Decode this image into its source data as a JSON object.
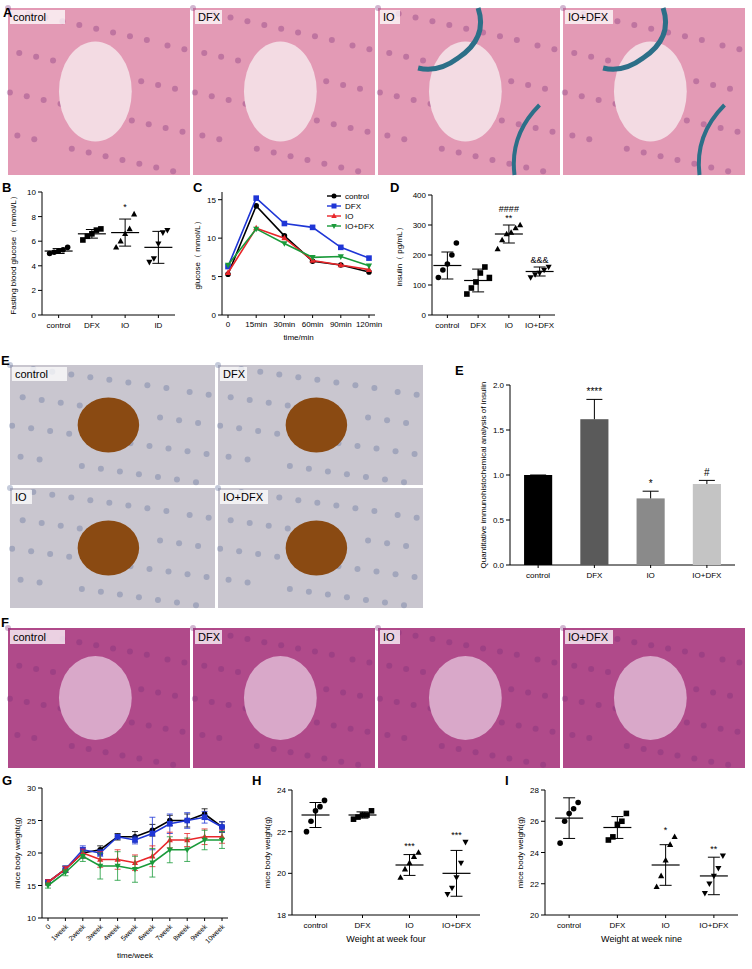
{
  "image_panels": [
    {
      "panel": "A",
      "labels": [
        "control",
        "DFX",
        "IO",
        "IO+DFX"
      ]
    },
    {
      "panel": "E",
      "labels": [
        "control",
        "DFX",
        "IO",
        "IO+DFX"
      ]
    },
    {
      "panel": "F",
      "labels": [
        "control",
        "DFX",
        "IO",
        "IO+DFX"
      ]
    }
  ],
  "chart_data": [
    {
      "panel": "B",
      "type": "dot",
      "y_label": "Fasting blood glucose（ mmol/L）",
      "categories": [
        "control",
        "DFX",
        "IO",
        "ID"
      ],
      "points": [
        [
          5.0,
          5.1,
          5.2,
          5.3,
          5.5
        ],
        [
          6.1,
          6.4,
          6.6,
          6.9,
          7.0
        ],
        [
          5.5,
          6.0,
          6.6,
          7.0,
          8.2
        ],
        [
          4.3,
          4.6,
          5.8,
          6.7,
          6.9
        ]
      ],
      "means": [
        5.2,
        6.6,
        6.7,
        5.5
      ],
      "errors": [
        0.2,
        0.35,
        1.1,
        1.3
      ],
      "annotations": [
        null,
        null,
        [
          "*"
        ],
        null
      ],
      "ylim": [
        0,
        10
      ],
      "yticks": [
        0,
        2,
        4,
        6,
        8,
        10
      ]
    },
    {
      "panel": "C",
      "type": "line",
      "y_label": "glucose（ mmol/L）",
      "x_label": "time/min",
      "categories": [
        "0",
        "15min",
        "30min",
        "60min",
        "90min",
        "120min"
      ],
      "series": [
        {
          "name": "control",
          "color": "#000000",
          "marker": "circle",
          "values": [
            5.3,
            14.2,
            10.3,
            7.0,
            6.5,
            5.6
          ]
        },
        {
          "name": "DFX",
          "color": "#1f36d6",
          "marker": "square",
          "values": [
            6.3,
            15.2,
            11.9,
            11.4,
            8.8,
            7.4
          ]
        },
        {
          "name": "IO",
          "color": "#e8262a",
          "marker": "triangle",
          "values": [
            5.5,
            11.3,
            10.0,
            7.1,
            6.5,
            5.9
          ]
        },
        {
          "name": "IO+DFX",
          "color": "#1a9a3a",
          "marker": "triangle-down",
          "values": [
            6.5,
            11.2,
            9.3,
            7.5,
            7.6,
            6.4
          ]
        }
      ],
      "legend": "top-right",
      "ylim": [
        0,
        16
      ],
      "yticks": [
        0,
        5,
        10,
        15
      ]
    },
    {
      "panel": "D",
      "type": "dot",
      "y_label": "insulin（ pg/mL）",
      "categories": [
        "control",
        "DFX",
        "IO",
        "IO+DFX"
      ],
      "points": [
        [
          125,
          150,
          170,
          200,
          240
        ],
        [
          70,
          90,
          110,
          140,
          160,
          125
        ],
        [
          220,
          250,
          270,
          275,
          290,
          300
        ],
        [
          125,
          135,
          140,
          150,
          160
        ]
      ],
      "means": [
        165,
        115,
        270,
        145
      ],
      "errors": [
        45,
        38,
        30,
        15
      ],
      "annotations": [
        null,
        null,
        [
          "####",
          "**"
        ],
        [
          "&&&"
        ]
      ],
      "ylim": [
        0,
        400
      ],
      "yticks": [
        0,
        100,
        200,
        300,
        400
      ]
    },
    {
      "panel": "E",
      "type": "bar",
      "y_label": "Quantitative immunohistochemical analysis of insulin",
      "categories": [
        "control",
        "DFX",
        "IO",
        "IO+DFX"
      ],
      "values": [
        1.0,
        1.62,
        0.74,
        0.9
      ],
      "errors": [
        0,
        0.22,
        0.08,
        0.04
      ],
      "colors": [
        "#000000",
        "#5a5a5a",
        "#8a8a8a",
        "#c4c4c4"
      ],
      "annotations": [
        null,
        "****",
        "*",
        "#"
      ],
      "ylim": [
        0,
        2
      ],
      "yticks": [
        {
          "value": 0,
          "label": "0.0"
        },
        {
          "value": 0.5,
          "label": "0.5"
        },
        {
          "value": 1,
          "label": "1.0"
        },
        {
          "value": 1.5,
          "label": "1.5"
        },
        {
          "value": 2,
          "label": "2.0"
        }
      ]
    },
    {
      "panel": "G",
      "type": "line",
      "y_label": "mice body weight(g)",
      "x_label": "time/week",
      "categories": [
        "0",
        "1week",
        "2week",
        "3week",
        "4week",
        "5week",
        "6week",
        "7week",
        "8week",
        "9week",
        "10week"
      ],
      "series": [
        {
          "name": "control",
          "color": "#000000",
          "marker": "circle",
          "values": [
            15.5,
            17.5,
            20,
            20.5,
            22.5,
            22.5,
            23.5,
            25,
            25,
            26,
            24
          ],
          "errors": [
            0.4,
            0.5,
            0.8,
            0.6,
            0.5,
            0.8,
            0.9,
            0.8,
            1.0,
            0.8,
            0.8
          ]
        },
        {
          "name": "DFX",
          "color": "#1f36d6",
          "marker": "square",
          "values": [
            15.5,
            17.5,
            20.5,
            20,
            22.5,
            22,
            23,
            24.5,
            25,
            25.5,
            24
          ],
          "errors": [
            0.4,
            0.5,
            0.6,
            0.5,
            0.3,
            0.6,
            2.5,
            1.5,
            1.2,
            0.9,
            0.8
          ]
        },
        {
          "name": "IO",
          "color": "#e8262a",
          "marker": "triangle",
          "values": [
            15.5,
            17.5,
            20,
            19,
            19,
            18.5,
            19.5,
            22,
            22,
            22.5,
            22.5
          ],
          "errors": [
            0.4,
            0.4,
            0.6,
            1.2,
            1.5,
            1.2,
            1.6,
            1.2,
            1.0,
            1.2,
            1.0
          ]
        },
        {
          "name": "IO+DFX",
          "color": "#1a9a3a",
          "marker": "triangle-down",
          "values": [
            15,
            17,
            19.5,
            18,
            18,
            17.5,
            18.5,
            20.5,
            20.5,
            22,
            22
          ],
          "errors": [
            0.4,
            0.5,
            0.8,
            2.0,
            2.2,
            2.0,
            2.2,
            2.0,
            1.8,
            1.5,
            1.3
          ]
        }
      ],
      "ylim": [
        10,
        30
      ],
      "yticks": [
        10,
        15,
        20,
        25,
        30
      ]
    },
    {
      "panel": "H",
      "type": "dot",
      "y_label": "mice body weight(g)",
      "x_label": "Weight at week four",
      "categories": [
        "control",
        "DFX",
        "IO",
        "IO+DFX"
      ],
      "points": [
        [
          22.0,
          22.5,
          23.0,
          23.2,
          23.5
        ],
        [
          22.6,
          22.7,
          22.8,
          22.8,
          23.0
        ],
        [
          19.8,
          20.2,
          20.5,
          20.8,
          21.0
        ],
        [
          19.0,
          19.3,
          19.8,
          20.5,
          21.5
        ]
      ],
      "means": [
        22.8,
        22.8,
        20.4,
        20.0
      ],
      "errors": [
        0.6,
        0.15,
        0.5,
        1.1
      ],
      "annotations": [
        null,
        null,
        [
          "***"
        ],
        [
          "***"
        ]
      ],
      "ylim": [
        18,
        24
      ],
      "yticks": [
        18,
        20,
        22,
        24
      ]
    },
    {
      "panel": "I",
      "type": "dot",
      "y_label": "mice body weight(g)",
      "x_label": "Weight at week nine",
      "categories": [
        "control",
        "DFX",
        "IO",
        "IO+DFX"
      ],
      "points": [
        [
          24.6,
          26.0,
          26.5,
          26.8,
          27.2
        ],
        [
          24.8,
          25.0,
          25.8,
          26.0,
          26.5
        ],
        [
          21.8,
          22.5,
          23.5,
          24.5,
          25.0
        ],
        [
          21.4,
          22.0,
          22.5,
          23.0,
          23.8
        ]
      ],
      "means": [
        26.2,
        25.6,
        23.2,
        22.5
      ],
      "errors": [
        1.3,
        0.7,
        1.3,
        1.2
      ],
      "annotations": [
        null,
        null,
        [
          "*"
        ],
        [
          "**"
        ]
      ],
      "ylim": [
        20,
        28
      ],
      "yticks": [
        20,
        22,
        24,
        26,
        28
      ]
    }
  ]
}
